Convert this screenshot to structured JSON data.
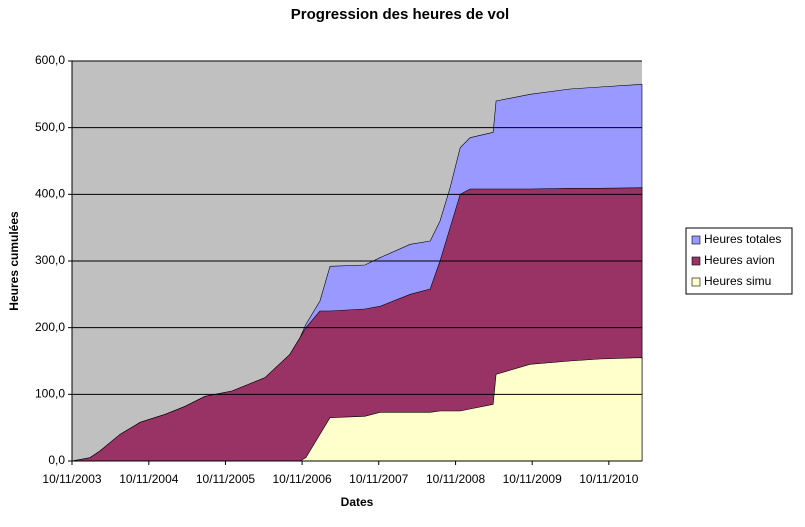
{
  "chart_data": {
    "type": "area",
    "title": "Progression des heures de vol",
    "x_label": "Dates",
    "y_label": "Heures cumulées",
    "x": [
      "10/11/2003",
      "04/02/2004",
      "22/03/2004",
      "26/06/2004",
      "30/09/2004",
      "27/01/2005",
      "02/05/2005",
      "05/08/2005",
      "11/12/2005",
      "17/05/2006",
      "13/09/2006",
      "31/10/2006",
      "28/11/2006",
      "03/02/2007",
      "23/03/2007",
      "05/09/2007",
      "16/11/2007",
      "08/04/2008",
      "12/07/2008",
      "28/08/2008",
      "15/10/2008",
      "02/12/2008",
      "18/01/2009",
      "08/05/2009",
      "22/05/2009",
      "31/10/2009",
      "09/05/2010",
      "29/09/2010",
      "17/04/2011"
    ],
    "series": [
      {
        "name": "Heures totales",
        "color": "#9999ff",
        "values": [
          0,
          5,
          15,
          40,
          58,
          70,
          82,
          97,
          105,
          125,
          160,
          185,
          205,
          240,
          292,
          294,
          305,
          325,
          330,
          360,
          410,
          470,
          485,
          493,
          540,
          550,
          558,
          561,
          565
        ]
      },
      {
        "name": "Heures avion",
        "color": "#993366",
        "values": [
          0,
          5,
          15,
          40,
          58,
          70,
          82,
          97,
          105,
          125,
          160,
          185,
          200,
          225,
          225,
          228,
          232,
          250,
          258,
          300,
          350,
          400,
          408,
          408,
          408,
          408,
          409,
          409,
          410
        ]
      },
      {
        "name": "Heures simu",
        "color": "#ffffcc",
        "values": [
          0,
          0,
          0,
          0,
          0,
          0,
          0,
          0,
          0,
          0,
          0,
          0,
          5,
          40,
          65,
          67,
          73,
          73,
          73,
          75,
          75,
          75,
          78,
          85,
          130,
          145,
          150,
          153,
          155
        ]
      }
    ],
    "xlim": [
      "10/11/2003",
      "17/04/2011"
    ],
    "xticks": [
      "10/11/2003",
      "10/11/2004",
      "10/11/2005",
      "10/11/2006",
      "10/11/2007",
      "10/11/2008",
      "10/11/2009",
      "10/11/2010"
    ],
    "ylim": [
      0,
      600
    ],
    "yticks": [
      {
        "value": 0,
        "label": "0,0"
      },
      {
        "value": 100,
        "label": "100,0"
      },
      {
        "value": 200,
        "label": "200,0"
      },
      {
        "value": 300,
        "label": "300,0"
      },
      {
        "value": 400,
        "label": "400,0"
      },
      {
        "value": 500,
        "label": "500,0"
      },
      {
        "value": 600,
        "label": "600,0"
      }
    ],
    "grid": true,
    "legend": "right",
    "plot_background": "#c0c0c0"
  }
}
